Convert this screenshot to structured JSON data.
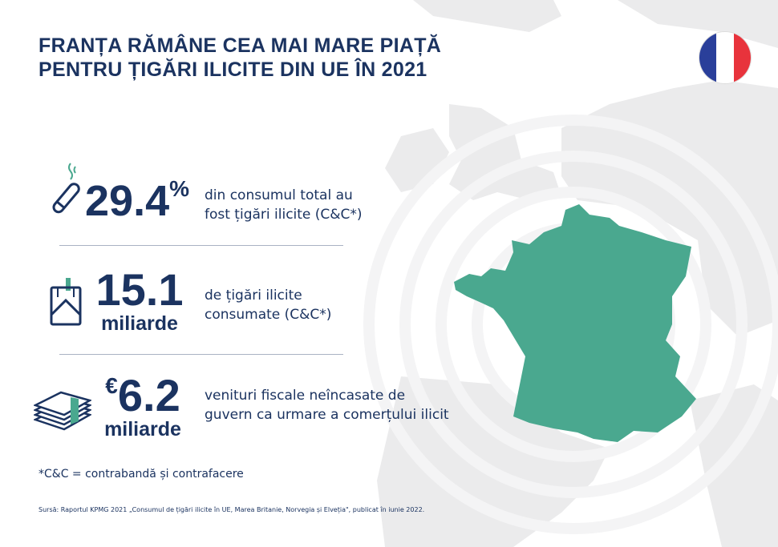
{
  "title": [
    "FRANȚA RĂMÂNE CEA MAI MARE PIAȚĂ",
    "PENTRU ȚIGĂRI ILICITE DIN UE ÎN 2021"
  ],
  "flag": {
    "colors": [
      "#2a3f9a",
      "#ffffff",
      "#e8333c"
    ]
  },
  "stats": [
    {
      "value": "29.4",
      "suffix": "%",
      "description": [
        "din consumul total au",
        "fost țigări ilicite (C&C*)"
      ],
      "icon": "cigarette-icon"
    },
    {
      "value": "15.1",
      "unit": "miliarde",
      "description": [
        "de țigări ilicite",
        "consumate (C&C*)"
      ],
      "icon": "cigarette-pack-icon"
    },
    {
      "value": "6.2",
      "prefix": "€",
      "unit": "miliarde",
      "description": [
        "venituri fiscale neîncasate de",
        "guvern ca urmare a comerțului ilicit"
      ],
      "icon": "money-stack-icon"
    }
  ],
  "footnote": "*C&C = contrabandă și contrafacere",
  "source": "Sursă: Raportul KPMG 2021 „Consumul de țigări ilicite în UE, Marea Britanie, Norvegia și Elveția\", publicat în iunie 2022.",
  "colors": {
    "navy": "#1b3360",
    "green": "#4aa88f",
    "map": "#e9e9ea"
  }
}
